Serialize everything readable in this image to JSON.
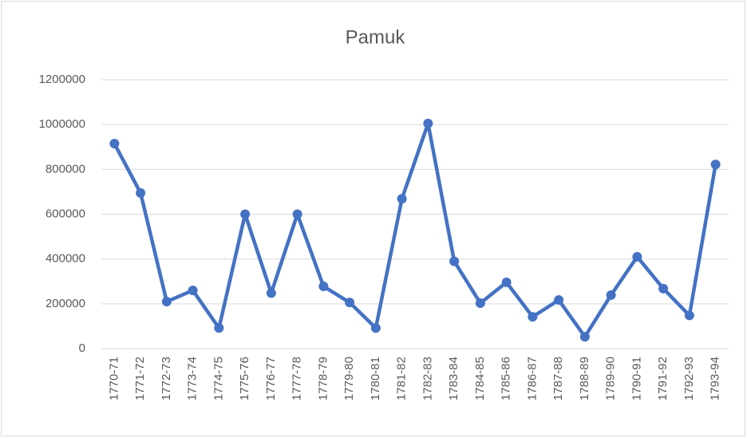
{
  "chart_data": {
    "type": "line",
    "title": "Pamuk",
    "categories": [
      "1770-71",
      "1771-72",
      "1772-73",
      "1773-74",
      "1774-75",
      "1775-76",
      "1776-77",
      "1777-78",
      "1778-79",
      "1779-80",
      "1780-81",
      "1781-82",
      "1782-83",
      "1783-84",
      "1784-85",
      "1785-86",
      "1786-87",
      "1787-88",
      "1788-89",
      "1789-90",
      "1790-91",
      "1791-92",
      "1792-93",
      "1793-94"
    ],
    "values": [
      915000,
      695000,
      210000,
      260000,
      92000,
      600000,
      248000,
      600000,
      278000,
      206000,
      92000,
      669000,
      1005000,
      390000,
      203000,
      296000,
      142000,
      217000,
      53000,
      239000,
      410000,
      268000,
      148000,
      822000
    ],
    "color": "#4472c4",
    "ylim": [
      0,
      1200000
    ],
    "yticks": [
      0,
      200000,
      400000,
      600000,
      800000,
      1000000,
      1200000
    ],
    "grid": true
  }
}
